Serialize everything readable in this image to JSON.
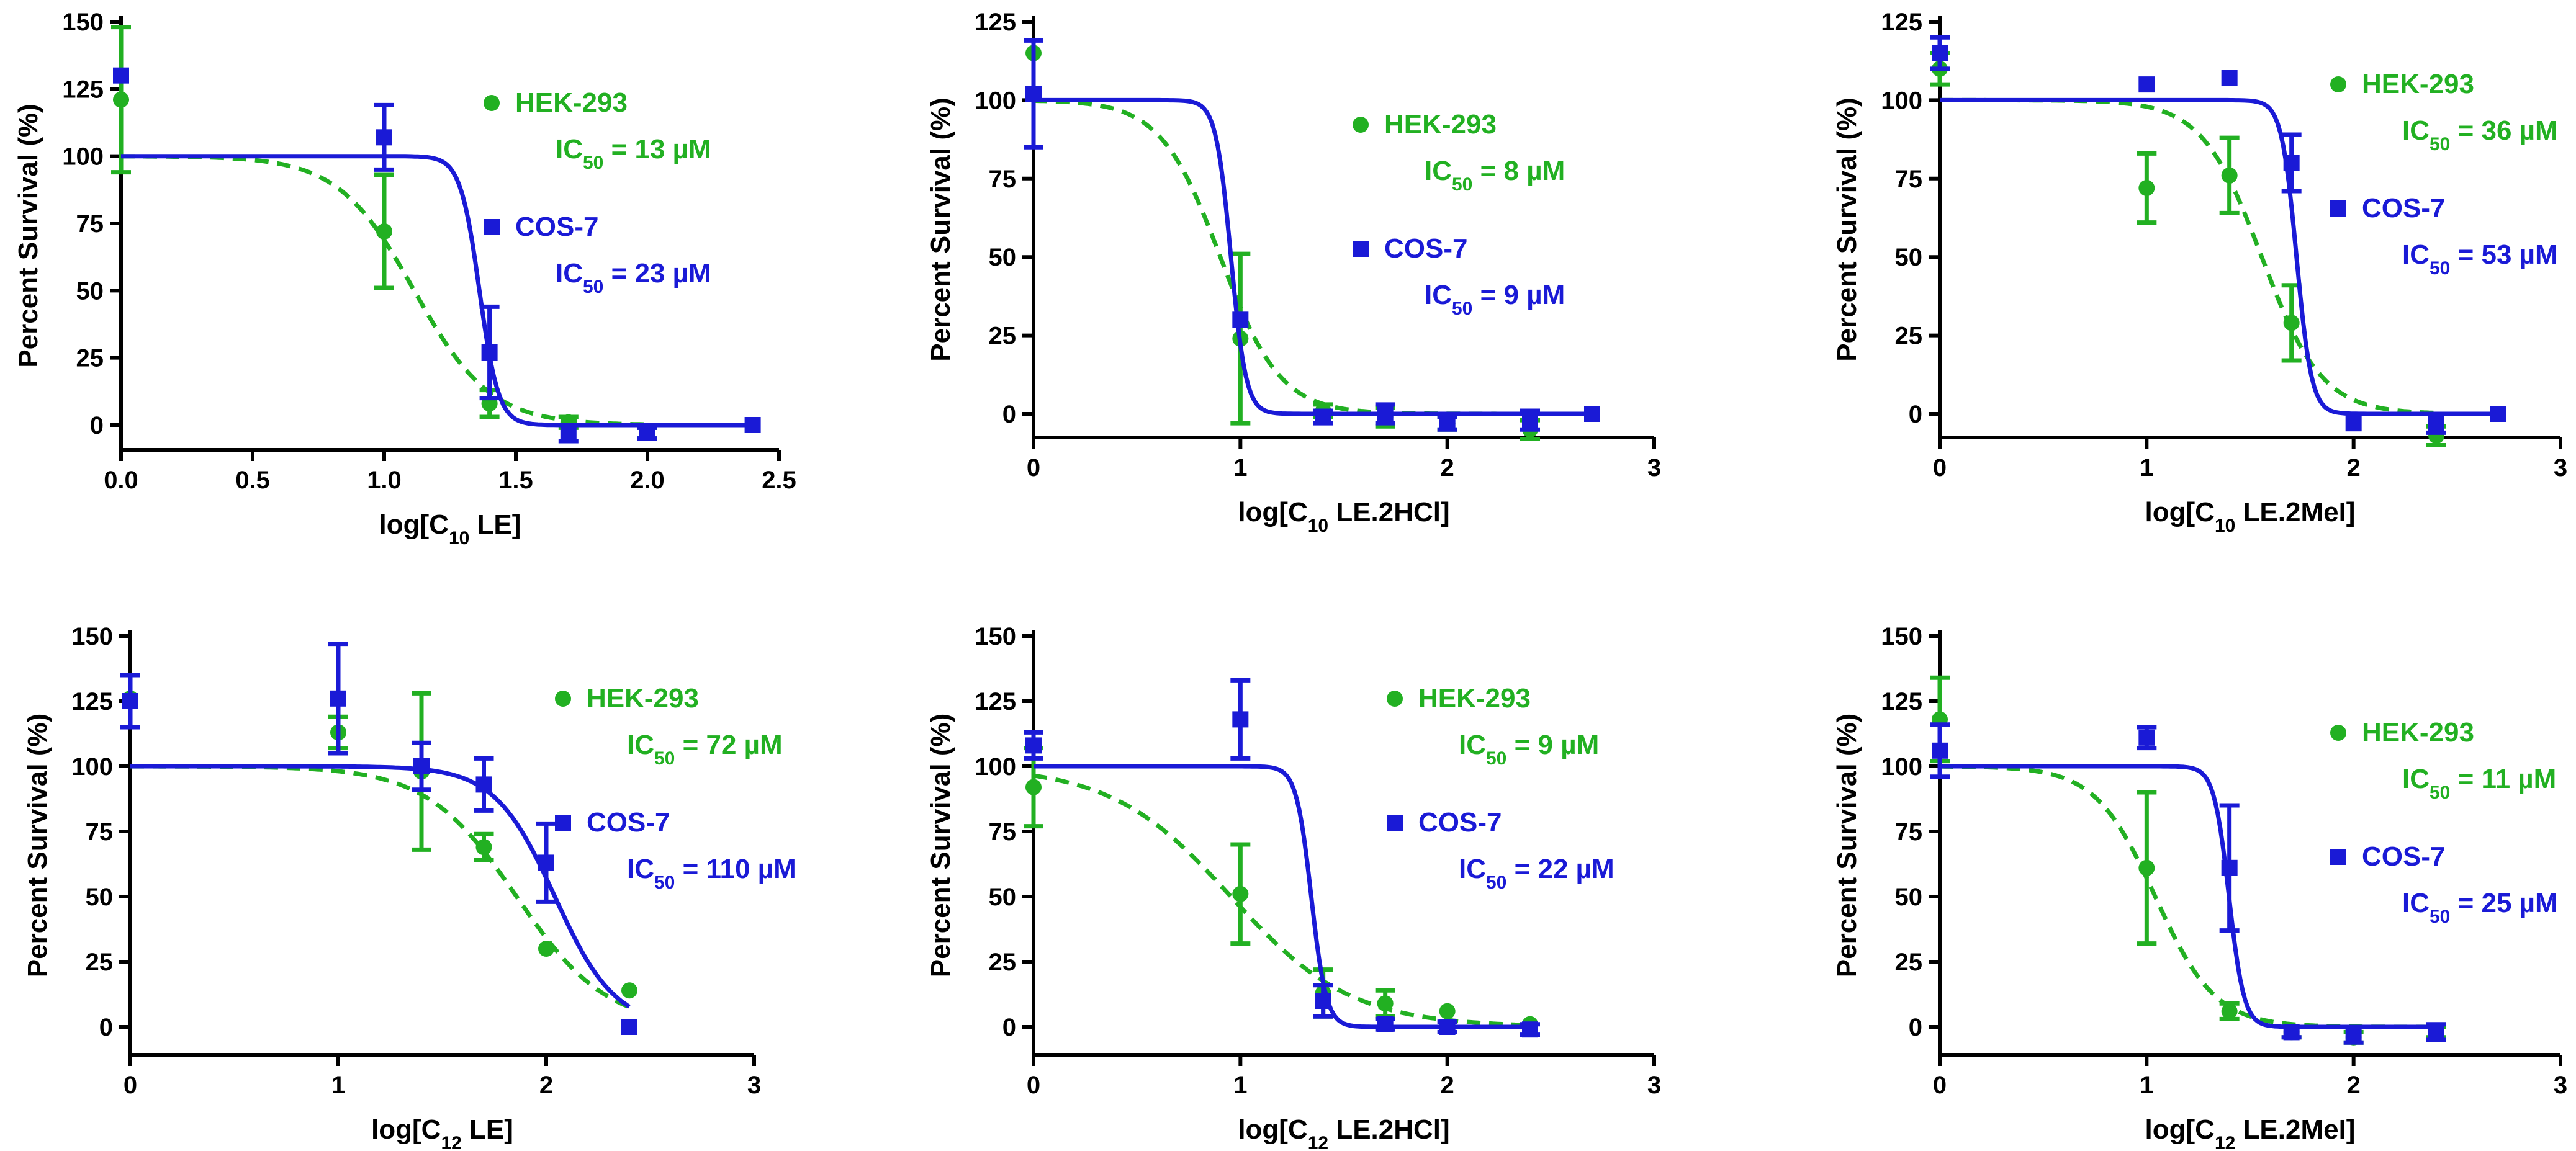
{
  "colors": {
    "hek": "#22b022",
    "cos": "#1a1ad6",
    "axis": "#000000"
  },
  "chart_data": [
    {
      "type": "scatter",
      "panel": "top-left",
      "xlabel": {
        "pre": "log[C",
        "sub": "10",
        "post": " LE]"
      },
      "ylabel": "Percent Survival (%)",
      "xlim": [
        0,
        2.5
      ],
      "ylim": [
        0,
        150
      ],
      "xticks": [
        "0.0",
        "0.5",
        "1.0",
        "1.5",
        "2.0",
        "2.5"
      ],
      "xtick_values": [
        0,
        0.5,
        1.0,
        1.5,
        2.0,
        2.5
      ],
      "yticks": [
        "0",
        "25",
        "50",
        "75",
        "100",
        "125",
        "150"
      ],
      "ytick_values": [
        0,
        25,
        50,
        75,
        100,
        125,
        150
      ],
      "series": [
        {
          "name": "HEK-293",
          "ic50_label": "IC",
          "ic50_sub": "50",
          "ic50_value": " = 13 µM",
          "ic50": 13,
          "marker": "circle",
          "line": "dashed",
          "hill": 3,
          "points": [
            {
              "x": 0,
              "y": 121,
              "err": 27
            },
            {
              "x": 1.0,
              "y": 72,
              "err": 21
            },
            {
              "x": 1.4,
              "y": 8,
              "err": 5
            },
            {
              "x": 1.7,
              "y": 1,
              "err": 2
            },
            {
              "x": 2.0,
              "y": -3,
              "err": 2
            }
          ]
        },
        {
          "name": "COS-7",
          "ic50_label": "IC",
          "ic50_sub": "50",
          "ic50_value": " = 23 µM",
          "ic50": 23,
          "marker": "square",
          "line": "solid",
          "hill": 12,
          "points": [
            {
              "x": 0,
              "y": 130,
              "err": 0
            },
            {
              "x": 1.0,
              "y": 107,
              "err": 12
            },
            {
              "x": 1.4,
              "y": 27,
              "err": 17
            },
            {
              "x": 1.7,
              "y": -3,
              "err": 3
            },
            {
              "x": 2.0,
              "y": -3,
              "err": 2
            },
            {
              "x": 2.4,
              "y": 0,
              "err": 0
            }
          ]
        }
      ]
    },
    {
      "type": "scatter",
      "panel": "top-middle",
      "xlabel": {
        "pre": "log[C",
        "sub": "10",
        "post": " LE.2HCl]"
      },
      "ylabel": "Percent Survival (%)",
      "xlim": [
        0,
        3
      ],
      "ylim": [
        -10,
        125
      ],
      "xticks": [
        "0",
        "1",
        "2",
        "3"
      ],
      "xtick_values": [
        0,
        1,
        2,
        3
      ],
      "yticks": [
        "0",
        "25",
        "50",
        "75",
        "100",
        "125"
      ],
      "ytick_values": [
        0,
        25,
        50,
        75,
        100,
        125
      ],
      "series": [
        {
          "name": "HEK-293",
          "ic50_label": "IC",
          "ic50_sub": "50",
          "ic50_value": " = 8 µM",
          "ic50": 8,
          "marker": "circle",
          "line": "dashed",
          "hill": 3,
          "points": [
            {
              "x": 0,
              "y": 115,
              "err": 0
            },
            {
              "x": 1.0,
              "y": 24,
              "err": 27
            },
            {
              "x": 1.4,
              "y": 1,
              "err": 2
            },
            {
              "x": 1.7,
              "y": -1,
              "err": 3
            },
            {
              "x": 2.0,
              "y": -3,
              "err": 2
            },
            {
              "x": 2.4,
              "y": -5,
              "err": 3
            }
          ]
        },
        {
          "name": "COS-7",
          "ic50_label": "IC",
          "ic50_sub": "50",
          "ic50_value": " = 9 µM",
          "ic50": 9,
          "marker": "square",
          "line": "solid",
          "hill": 12,
          "points": [
            {
              "x": 0,
              "y": 102,
              "err": 17
            },
            {
              "x": 1.0,
              "y": 30,
              "err": 0
            },
            {
              "x": 1.4,
              "y": -1,
              "err": 2
            },
            {
              "x": 1.7,
              "y": 0,
              "err": 3
            },
            {
              "x": 2.0,
              "y": -3,
              "err": 2
            },
            {
              "x": 2.4,
              "y": -2,
              "err": 3
            },
            {
              "x": 2.7,
              "y": 0,
              "err": 0
            }
          ]
        }
      ]
    },
    {
      "type": "scatter",
      "panel": "top-right",
      "xlabel": {
        "pre": "log[C",
        "sub": "10",
        "post": " LE.2MeI]"
      },
      "ylabel": "Percent Survival (%)",
      "xlim": [
        0,
        3
      ],
      "ylim": [
        -10,
        125
      ],
      "xticks": [
        "0",
        "1",
        "2",
        "3"
      ],
      "xtick_values": [
        0,
        1,
        2,
        3
      ],
      "yticks": [
        "0",
        "25",
        "50",
        "75",
        "100",
        "125"
      ],
      "ytick_values": [
        0,
        25,
        50,
        75,
        100,
        125
      ],
      "series": [
        {
          "name": "HEK-293",
          "ic50_label": "IC",
          "ic50_sub": "50",
          "ic50_value": " = 36 µM",
          "ic50": 36,
          "marker": "circle",
          "line": "dashed",
          "hill": 3,
          "points": [
            {
              "x": 0,
              "y": 110,
              "err": 5
            },
            {
              "x": 1.0,
              "y": 72,
              "err": 11
            },
            {
              "x": 1.4,
              "y": 76,
              "err": 12
            },
            {
              "x": 1.7,
              "y": 29,
              "err": 12
            },
            {
              "x": 2.4,
              "y": -7,
              "err": 3
            }
          ]
        },
        {
          "name": "COS-7",
          "ic50_label": "IC",
          "ic50_sub": "50",
          "ic50_value": " = 53 µM",
          "ic50": 53,
          "marker": "square",
          "line": "solid",
          "hill": 12,
          "points": [
            {
              "x": 0,
              "y": 115,
              "err": 5
            },
            {
              "x": 1.0,
              "y": 105,
              "err": 0
            },
            {
              "x": 1.4,
              "y": 107,
              "err": 0
            },
            {
              "x": 1.7,
              "y": 80,
              "err": 9
            },
            {
              "x": 2.0,
              "y": -3,
              "err": 0
            },
            {
              "x": 2.4,
              "y": -3,
              "err": 3
            },
            {
              "x": 2.7,
              "y": 0,
              "err": 0
            }
          ]
        }
      ]
    },
    {
      "type": "scatter",
      "panel": "bottom-left",
      "xlabel": {
        "pre": "log[C",
        "sub": "12",
        "post": " LE]"
      },
      "ylabel": "Percent Survival (%)",
      "xlim": [
        0,
        3
      ],
      "ylim": [
        -10,
        150
      ],
      "xticks": [
        "0",
        "1",
        "2",
        "3"
      ],
      "xtick_values": [
        0,
        1,
        2,
        3
      ],
      "yticks": [
        "0",
        "25",
        "50",
        "75",
        "100",
        "125",
        "150"
      ],
      "ytick_values": [
        0,
        25,
        50,
        75,
        100,
        125,
        150
      ],
      "series": [
        {
          "name": "HEK-293",
          "ic50_label": "IC",
          "ic50_sub": "50",
          "ic50_value": " = 72 µM",
          "ic50": 72,
          "marker": "circle",
          "line": "dashed",
          "hill": 2,
          "points": [
            {
              "x": 0,
              "y": 126,
              "err": 0
            },
            {
              "x": 1.0,
              "y": 113,
              "err": 6
            },
            {
              "x": 1.4,
              "y": 98,
              "err": 30
            },
            {
              "x": 1.7,
              "y": 69,
              "err": 5
            },
            {
              "x": 2.0,
              "y": 30,
              "err": 0
            },
            {
              "x": 2.4,
              "y": 14,
              "err": 0
            }
          ]
        },
        {
          "name": "COS-7",
          "ic50_label": "IC",
          "ic50_sub": "50",
          "ic50_value": " = 110 µM",
          "ic50": 110,
          "marker": "square",
          "line": "solid",
          "hill": 3,
          "points": [
            {
              "x": 0,
              "y": 125,
              "err": 10
            },
            {
              "x": 1.0,
              "y": 126,
              "err": 21
            },
            {
              "x": 1.4,
              "y": 100,
              "err": 9
            },
            {
              "x": 1.7,
              "y": 93,
              "err": 10
            },
            {
              "x": 2.0,
              "y": 63,
              "err": 15
            },
            {
              "x": 2.4,
              "y": 0,
              "err": 0
            }
          ]
        }
      ]
    },
    {
      "type": "scatter",
      "panel": "bottom-middle",
      "xlabel": {
        "pre": "log[C",
        "sub": "12",
        "post": " LE.2HCl]"
      },
      "ylabel": "Percent Survival (%)",
      "xlim": [
        0,
        3
      ],
      "ylim": [
        -10,
        150
      ],
      "xticks": [
        "0",
        "1",
        "2",
        "3"
      ],
      "xtick_values": [
        0,
        1,
        2,
        3
      ],
      "yticks": [
        "0",
        "25",
        "50",
        "75",
        "100",
        "125",
        "150"
      ],
      "ytick_values": [
        0,
        25,
        50,
        75,
        100,
        125,
        150
      ],
      "series": [
        {
          "name": "HEK-293",
          "ic50_label": "IC",
          "ic50_sub": "50",
          "ic50_value": " = 9 µM",
          "ic50": 9,
          "marker": "circle",
          "line": "dashed",
          "hill": 1.5,
          "points": [
            {
              "x": 0,
              "y": 92,
              "err": 15
            },
            {
              "x": 1.0,
              "y": 51,
              "err": 19
            },
            {
              "x": 1.4,
              "y": 13,
              "err": 9
            },
            {
              "x": 1.7,
              "y": 9,
              "err": 5
            },
            {
              "x": 2.0,
              "y": 6,
              "err": 0
            },
            {
              "x": 2.4,
              "y": 1,
              "err": 0
            }
          ]
        },
        {
          "name": "COS-7",
          "ic50_label": "IC",
          "ic50_sub": "50",
          "ic50_value": " = 22 µM",
          "ic50": 22,
          "marker": "square",
          "line": "solid",
          "hill": 12,
          "points": [
            {
              "x": 0,
              "y": 108,
              "err": 5
            },
            {
              "x": 1.0,
              "y": 118,
              "err": 15
            },
            {
              "x": 1.4,
              "y": 10,
              "err": 6
            },
            {
              "x": 1.7,
              "y": 1,
              "err": 2
            },
            {
              "x": 2.0,
              "y": 0,
              "err": 2
            },
            {
              "x": 2.4,
              "y": -1,
              "err": 2
            }
          ]
        }
      ]
    },
    {
      "type": "scatter",
      "panel": "bottom-right",
      "xlabel": {
        "pre": "log[C",
        "sub": "12",
        "post": " LE.2MeI]"
      },
      "ylabel": "Percent Survival (%)",
      "xlim": [
        0,
        3
      ],
      "ylim": [
        -10,
        150
      ],
      "xticks": [
        "0",
        "1",
        "2",
        "3"
      ],
      "xtick_values": [
        0,
        1,
        2,
        3
      ],
      "yticks": [
        "0",
        "25",
        "50",
        "75",
        "100",
        "125",
        "150"
      ],
      "ytick_values": [
        0,
        25,
        50,
        75,
        100,
        125,
        150
      ],
      "series": [
        {
          "name": "HEK-293",
          "ic50_label": "IC",
          "ic50_sub": "50",
          "ic50_value": " = 11 µM",
          "ic50": 11,
          "marker": "circle",
          "line": "dashed",
          "hill": 3,
          "points": [
            {
              "x": 0,
              "y": 118,
              "err": 16
            },
            {
              "x": 1.0,
              "y": 61,
              "err": 29
            },
            {
              "x": 1.4,
              "y": 6,
              "err": 3
            },
            {
              "x": 1.7,
              "y": -2,
              "err": 2
            },
            {
              "x": 2.0,
              "y": -4,
              "err": 2
            },
            {
              "x": 2.4,
              "y": -2,
              "err": 2
            }
          ]
        },
        {
          "name": "COS-7",
          "ic50_label": "IC",
          "ic50_sub": "50",
          "ic50_value": " = 25 µM",
          "ic50": 25,
          "marker": "square",
          "line": "solid",
          "hill": 12,
          "points": [
            {
              "x": 0,
              "y": 106,
              "err": 10
            },
            {
              "x": 1.0,
              "y": 111,
              "err": 4
            },
            {
              "x": 1.4,
              "y": 61,
              "err": 24
            },
            {
              "x": 1.7,
              "y": -2,
              "err": 2
            },
            {
              "x": 2.0,
              "y": -3,
              "err": 3
            },
            {
              "x": 2.4,
              "y": -2,
              "err": 3
            }
          ]
        }
      ]
    }
  ]
}
